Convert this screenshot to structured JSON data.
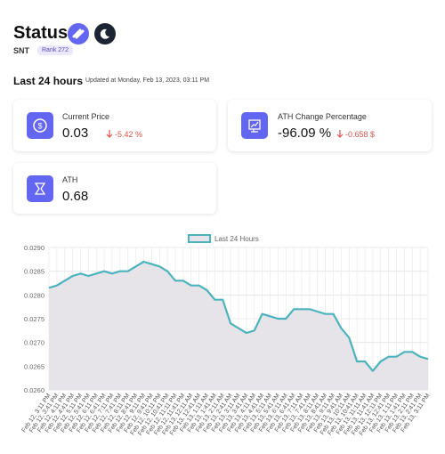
{
  "header": {
    "title": "Status",
    "symbol": "SNT",
    "rank": "Rank 272",
    "period": "Last 24 hours",
    "updated": "Updated at Monday, Feb 13, 2023, 03:11 PM"
  },
  "cards": [
    {
      "label": "Current Price",
      "value": "0.03",
      "change": "-5.42 %"
    },
    {
      "label": "ATH Change Percentage",
      "value": "-96.09 %",
      "change": "-0.658 $"
    },
    {
      "label": "ATH",
      "value": "0.68"
    }
  ],
  "chart_data": {
    "type": "line",
    "categories": [
      "Feb 12, 3:11 PM",
      "Feb 12, 3:41 PM",
      "Feb 12, 4:11 PM",
      "Feb 12, 4:41 PM",
      "Feb 12, 5:11 PM",
      "Feb 12, 5:41 PM",
      "Feb 12, 6:11 PM",
      "Feb 12, 6:41 PM",
      "Feb 12, 7:11 PM",
      "Feb 12, 7:41 PM",
      "Feb 12, 8:11 PM",
      "Feb 12, 8:41 PM",
      "Feb 12, 9:11 PM",
      "Feb 12, 9:41 PM",
      "Feb 12, 10:11 PM",
      "Feb 12, 10:41 PM",
      "Feb 12, 11:11 PM",
      "Feb 12, 11:41 PM",
      "Feb 13, 12:11 AM",
      "Feb 13, 12:41 AM",
      "Feb 13, 1:11 AM",
      "Feb 13, 1:41 AM",
      "Feb 13, 2:11 AM",
      "Feb 13, 2:41 AM",
      "Feb 13, 3:11 AM",
      "Feb 13, 3:41 AM",
      "Feb 13, 4:11 AM",
      "Feb 13, 4:41 AM",
      "Feb 13, 5:11 AM",
      "Feb 13, 5:41 AM",
      "Feb 13, 6:11 AM",
      "Feb 13, 6:41 AM",
      "Feb 13, 7:11 AM",
      "Feb 13, 7:41 AM",
      "Feb 13, 8:11 AM",
      "Feb 13, 8:41 AM",
      "Feb 13, 9:11 AM",
      "Feb 13, 9:41 AM",
      "Feb 13, 10:11 AM",
      "Feb 13, 10:41 AM",
      "Feb 13, 11:11 AM",
      "Feb 13, 11:41 AM",
      "Feb 13, 12:11 PM",
      "Feb 13, 12:41 PM",
      "Feb 13, 1:11 PM",
      "Feb 13, 1:41 PM",
      "Feb 13, 2:11 PM",
      "Feb 13, 2:41 PM",
      "Feb 13, 3:11 PM"
    ],
    "series": [
      {
        "name": "Last 24 Hours",
        "color": "#4bb3bd",
        "area_color": "#e6e4e8",
        "values": [
          0.02815,
          0.0282,
          0.0283,
          0.0284,
          0.02845,
          0.0284,
          0.02845,
          0.0285,
          0.02845,
          0.0285,
          0.0285,
          0.0286,
          0.0287,
          0.02865,
          0.0286,
          0.0285,
          0.0283,
          0.0283,
          0.0282,
          0.0282,
          0.0281,
          0.0279,
          0.0279,
          0.0274,
          0.0273,
          0.0272,
          0.02725,
          0.0276,
          0.02755,
          0.0275,
          0.0275,
          0.0277,
          0.0277,
          0.0277,
          0.02765,
          0.0276,
          0.0276,
          0.0273,
          0.0271,
          0.0266,
          0.0266,
          0.0264,
          0.0266,
          0.0267,
          0.0267,
          0.0268,
          0.0268,
          0.0267,
          0.02665
        ]
      }
    ],
    "ylim": [
      0.026,
      0.029
    ],
    "yticks": [
      {
        "value": 0.026,
        "label": "0.0260"
      },
      {
        "value": 0.0265,
        "label": "0.0265"
      },
      {
        "value": 0.027,
        "label": "0.0270"
      },
      {
        "value": 0.0275,
        "label": "0.0275"
      },
      {
        "value": 0.028,
        "label": "0.0280"
      },
      {
        "value": 0.0285,
        "label": "0.0285"
      },
      {
        "value": 0.029,
        "label": "0.0290"
      }
    ],
    "grid": true
  }
}
